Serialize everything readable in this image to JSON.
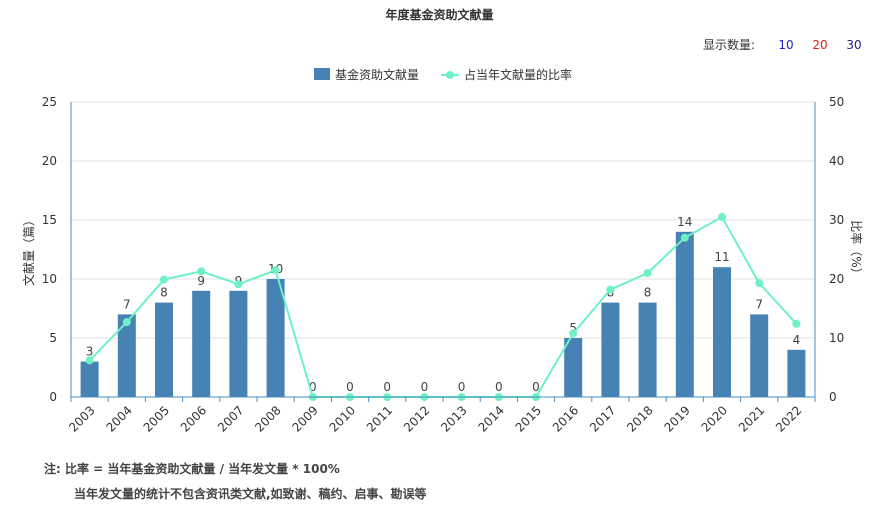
{
  "title": "年度基金资助文献量",
  "count_selector": {
    "label": "显示数量:",
    "options": [
      {
        "label": "10",
        "color": "#2222cc"
      },
      {
        "label": "20",
        "color": "#dd2222"
      },
      {
        "label": "30",
        "color": "#222288"
      }
    ]
  },
  "notes": {
    "line1": "注:  比率 = 当年基金资助文献量 / 当年发文量 * 100%",
    "line2": "当年发文量的统计不包含资讯类文献,如致谢、稿约、启事、勘误等"
  },
  "chart_data": {
    "type": "bar",
    "categories": [
      "2003",
      "2004",
      "2005",
      "2006",
      "2007",
      "2008",
      "2009",
      "2010",
      "2011",
      "2012",
      "2013",
      "2014",
      "2015",
      "2016",
      "2017",
      "2018",
      "2019",
      "2020",
      "2021",
      "2022"
    ],
    "series": [
      {
        "name": "基金资助文献量",
        "type": "bar",
        "axis": "left",
        "color": "#4682b4",
        "values": [
          3,
          7,
          8,
          9,
          9,
          10,
          0,
          0,
          0,
          0,
          0,
          0,
          0,
          5,
          8,
          8,
          14,
          11,
          7,
          4
        ]
      },
      {
        "name": "占当年文献量的比率",
        "type": "line",
        "axis": "right",
        "color": "#6ff0c8",
        "values": [
          6.2,
          12.7,
          19.9,
          21.3,
          19.1,
          21.5,
          0,
          0,
          0,
          0,
          0,
          0,
          0,
          10.8,
          18.2,
          21.0,
          27.0,
          30.5,
          19.3,
          12.4
        ]
      }
    ],
    "ylabel": "文献量（篇）",
    "y2label": "比率（%）",
    "ylim": [
      0,
      25
    ],
    "y2lim": [
      0,
      50
    ],
    "yticks": [
      0,
      5,
      10,
      15,
      20,
      25
    ],
    "y2ticks": [
      0,
      10,
      20,
      30,
      40,
      50
    ],
    "grid": true,
    "legend": "top-center"
  }
}
